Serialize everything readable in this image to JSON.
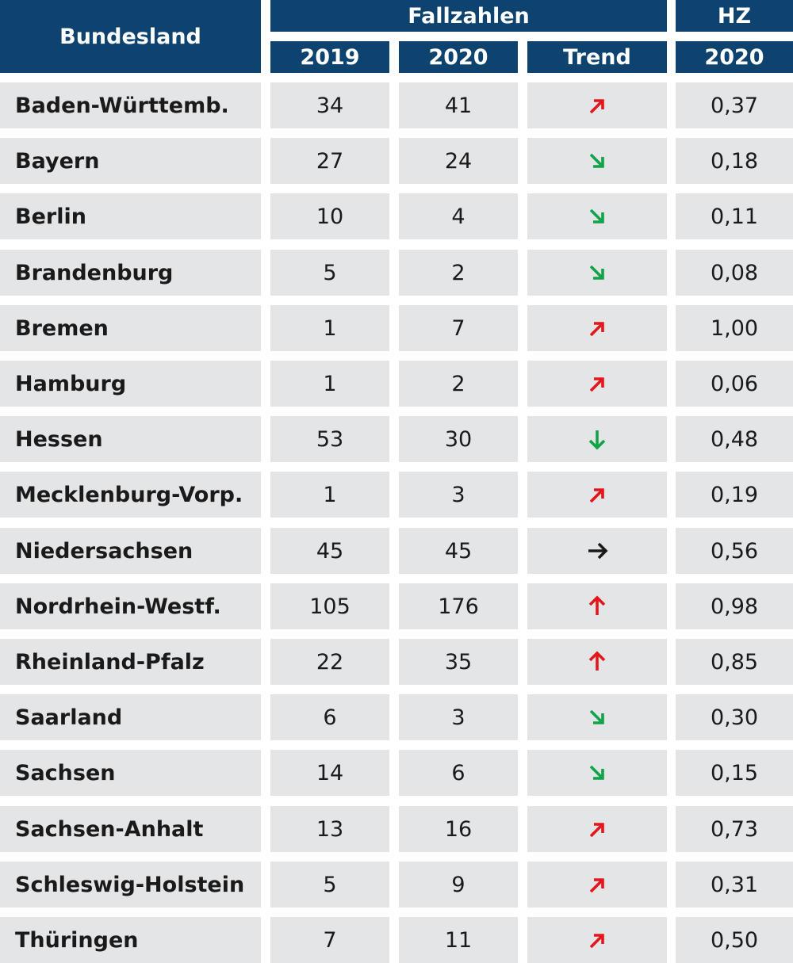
{
  "colors": {
    "header_bg": "#0d436e",
    "header_text": "#ffffff",
    "row_bg": "#e4e5e7",
    "up": "#e3161b",
    "down": "#12a24a",
    "flat": "#1a1a1a"
  },
  "header": {
    "bundesland": "Bundesland",
    "fallzahlen": "Fallzahlen",
    "hz": "HZ",
    "col_2019": "2019",
    "col_2020": "2020",
    "col_trend": "Trend",
    "col_hz_2020": "2020"
  },
  "chart_data": {
    "type": "table",
    "columns": [
      "Bundesland",
      "Fallzahlen 2019",
      "Fallzahlen 2020",
      "Trend",
      "HZ 2020"
    ],
    "trend_icons": {
      "up_right": "arrow-up-right-icon",
      "down_right": "arrow-down-right-icon",
      "down": "arrow-down-icon",
      "up": "arrow-up-icon",
      "right": "arrow-right-icon"
    },
    "rows": [
      {
        "name": "Baden-Württemb.",
        "y2019": "34",
        "y2020": "41",
        "trend": "up_right",
        "hz": "0,37"
      },
      {
        "name": "Bayern",
        "y2019": "27",
        "y2020": "24",
        "trend": "down_right",
        "hz": "0,18"
      },
      {
        "name": "Berlin",
        "y2019": "10",
        "y2020": "4",
        "trend": "down_right",
        "hz": "0,11"
      },
      {
        "name": "Brandenburg",
        "y2019": "5",
        "y2020": "2",
        "trend": "down_right",
        "hz": "0,08"
      },
      {
        "name": "Bremen",
        "y2019": "1",
        "y2020": "7",
        "trend": "up_right",
        "hz": "1,00"
      },
      {
        "name": "Hamburg",
        "y2019": "1",
        "y2020": "2",
        "trend": "up_right",
        "hz": "0,06"
      },
      {
        "name": "Hessen",
        "y2019": "53",
        "y2020": "30",
        "trend": "down",
        "hz": "0,48"
      },
      {
        "name": "Mecklenburg-Vorp.",
        "y2019": "1",
        "y2020": "3",
        "trend": "up_right",
        "hz": "0,19"
      },
      {
        "name": "Niedersachsen",
        "y2019": "45",
        "y2020": "45",
        "trend": "right",
        "hz": "0,56"
      },
      {
        "name": "Nordrhein-Westf.",
        "y2019": "105",
        "y2020": "176",
        "trend": "up",
        "hz": "0,98"
      },
      {
        "name": "Rheinland-Pfalz",
        "y2019": "22",
        "y2020": "35",
        "trend": "up",
        "hz": "0,85"
      },
      {
        "name": "Saarland",
        "y2019": "6",
        "y2020": "3",
        "trend": "down_right",
        "hz": "0,30"
      },
      {
        "name": "Sachsen",
        "y2019": "14",
        "y2020": "6",
        "trend": "down_right",
        "hz": "0,15"
      },
      {
        "name": "Sachsen-Anhalt",
        "y2019": "13",
        "y2020": "16",
        "trend": "up_right",
        "hz": "0,73"
      },
      {
        "name": "Schleswig-Holstein",
        "y2019": "5",
        "y2020": "9",
        "trend": "up_right",
        "hz": "0,31"
      },
      {
        "name": "Thüringen",
        "y2019": "7",
        "y2020": "11",
        "trend": "up_right",
        "hz": "0,50"
      }
    ]
  }
}
